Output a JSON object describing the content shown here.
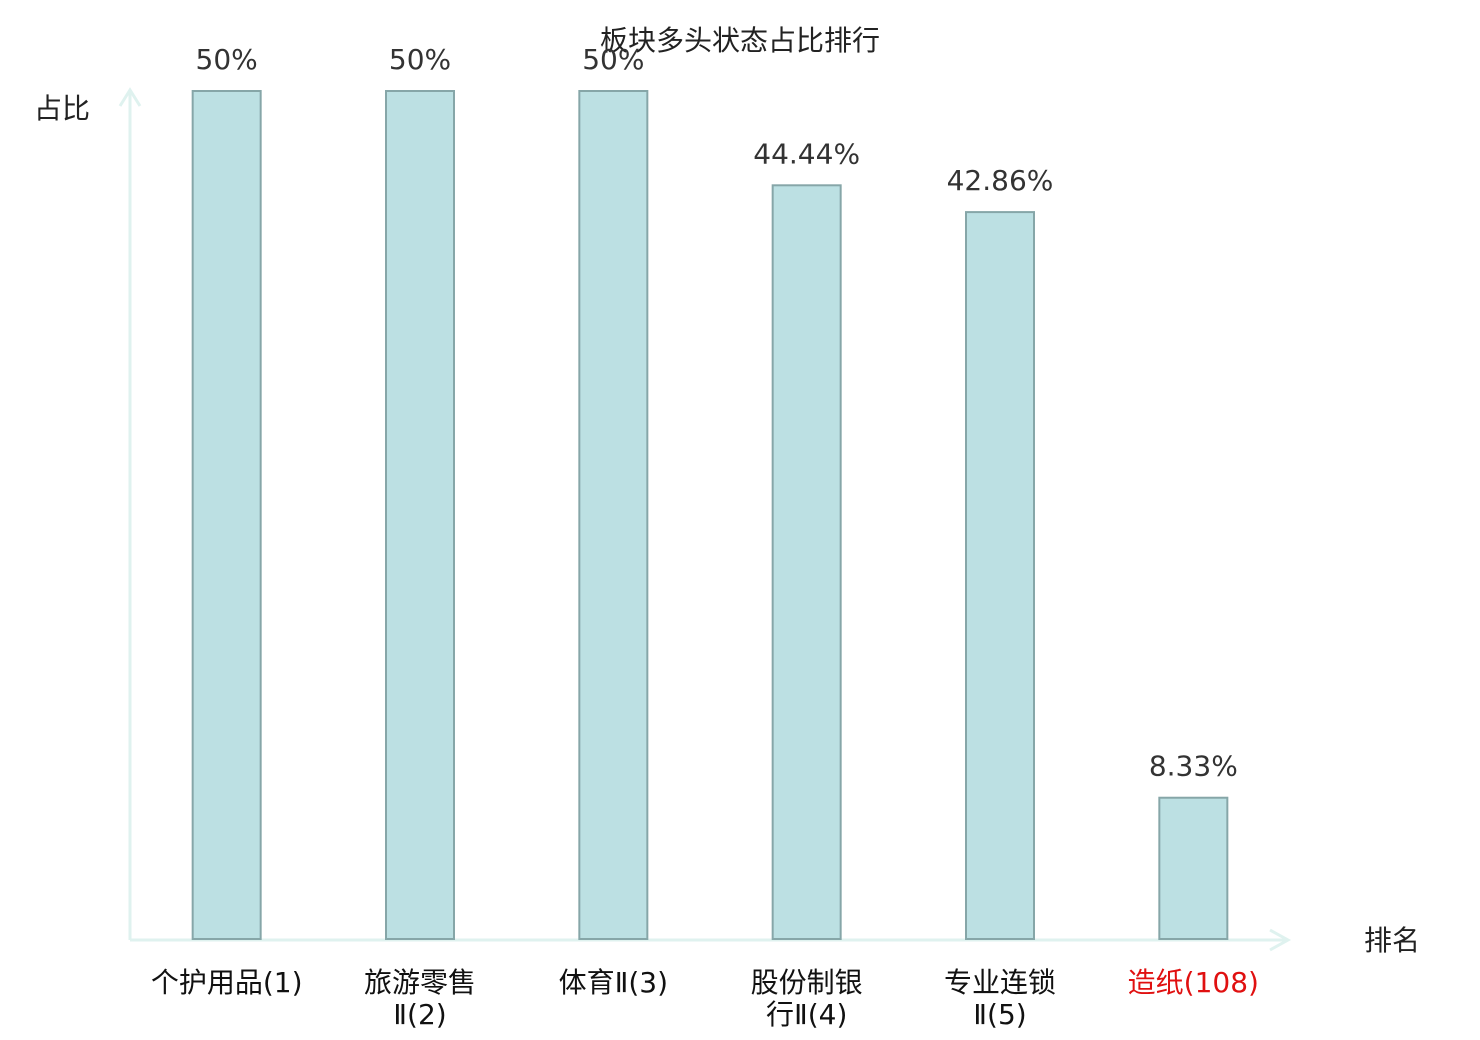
{
  "chart_data": {
    "type": "bar",
    "title": "板块多头状态占比排行",
    "x_label": "排名",
    "y_label": "占比",
    "categories": [
      "个护用品(1)",
      "旅游零售Ⅱ(2)",
      "体育Ⅱ(3)",
      "股份制银行Ⅱ(4)",
      "专业连锁Ⅱ(5)",
      "造纸(108)"
    ],
    "category_colors": [
      "#111111",
      "#111111",
      "#111111",
      "#111111",
      "#111111",
      "#e01010"
    ],
    "values": [
      50,
      50,
      50,
      44.44,
      42.86,
      8.33
    ],
    "value_labels": [
      "50%",
      "50%",
      "50%",
      "44.44%",
      "42.86%",
      "8.33%"
    ],
    "color": "#bce0e3",
    "edge_color": "#86a6a8",
    "ylim": [
      0,
      50
    ]
  }
}
